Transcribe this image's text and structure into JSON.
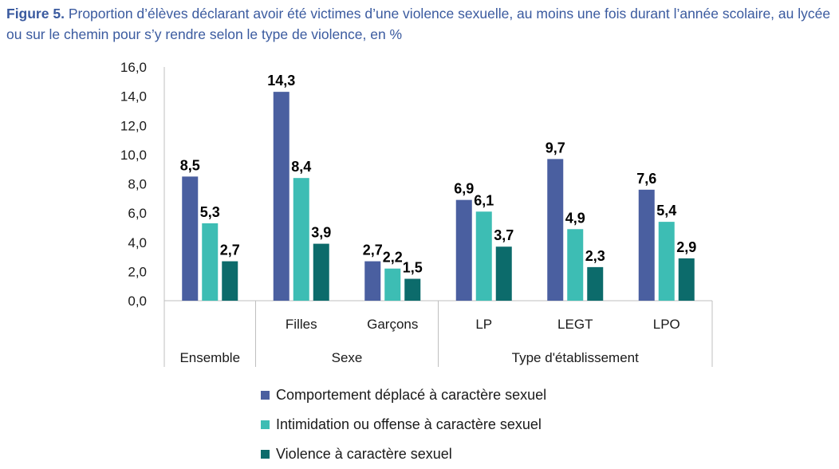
{
  "title": {
    "label": "Figure 5.",
    "text": "Proportion d’élèves déclarant avoir été victimes d’une violence sexuelle, au moins une fois durant l’année scolaire, au lycée ou sur le chemin pour s’y rendre selon le type de violence, en %"
  },
  "colors": {
    "series1": "#4a5fa0",
    "series2": "#3dbdb4",
    "series3": "#0c6b6b",
    "axis": "#bfbfbf",
    "text": "#1a1a1a"
  },
  "chart_data": {
    "type": "bar",
    "ylim": [
      0,
      16
    ],
    "yticks": [
      "0,0",
      "2,0",
      "4,0",
      "6,0",
      "8,0",
      "10,0",
      "12,0",
      "14,0",
      "16,0"
    ],
    "grid": false,
    "categories": [
      "",
      "Filles",
      "Garçons",
      "LP",
      "LEGT",
      "LPO"
    ],
    "groups": [
      {
        "label": "Ensemble",
        "span": 1
      },
      {
        "label": "Sexe",
        "span": 2
      },
      {
        "label": "Type d'établissement",
        "span": 3
      }
    ],
    "series": [
      {
        "name": "Comportement déplacé à caractère sexuel",
        "values": [
          8.5,
          14.3,
          2.7,
          6.9,
          9.7,
          7.6
        ],
        "labels": [
          "8,5",
          "14,3",
          "2,7",
          "6,9",
          "9,7",
          "7,6"
        ]
      },
      {
        "name": "Intimidation ou offense à caractère sexuel",
        "values": [
          5.3,
          8.4,
          2.2,
          6.1,
          4.9,
          5.4
        ],
        "labels": [
          "5,3",
          "8,4",
          "2,2",
          "6,1",
          "4,9",
          "5,4"
        ]
      },
      {
        "name": "Violence à caractère sexuel",
        "values": [
          2.7,
          3.9,
          1.5,
          3.7,
          2.3,
          2.9
        ],
        "labels": [
          "2,7",
          "3,9",
          "1,5",
          "3,7",
          "2,3",
          "2,9"
        ]
      }
    ],
    "legend_position": "bottom"
  }
}
